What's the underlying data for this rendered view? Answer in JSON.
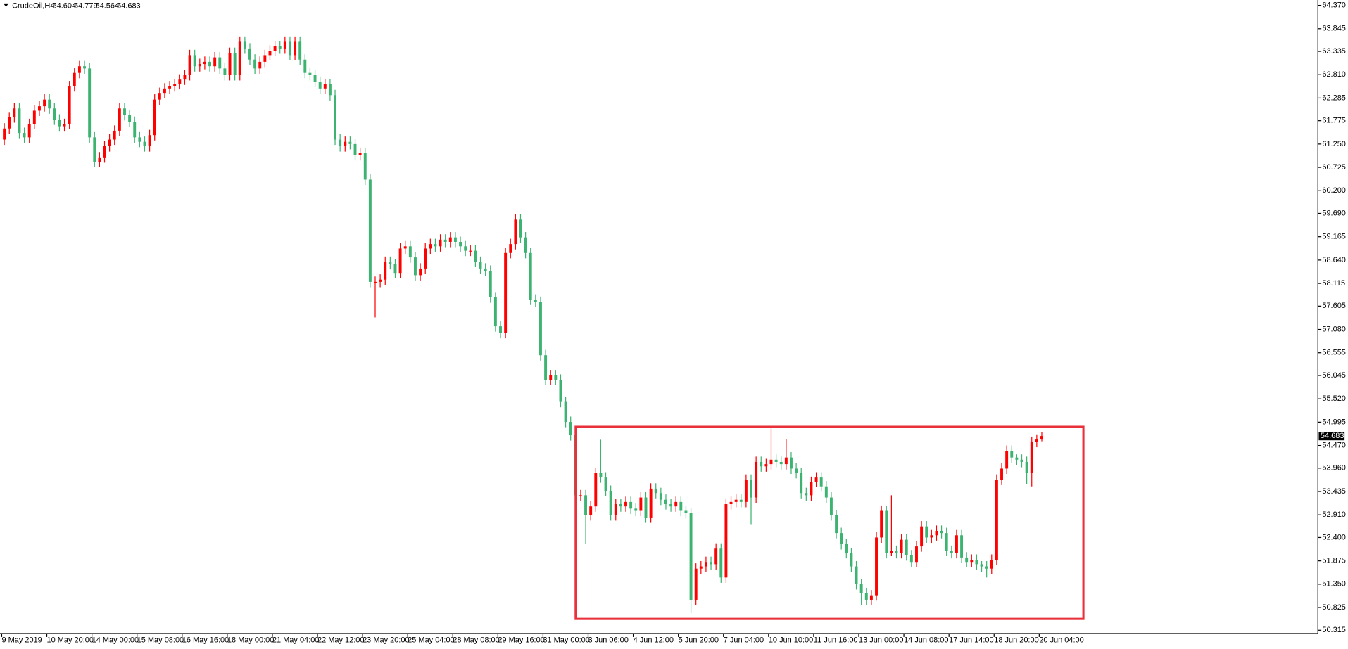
{
  "chart_data": {
    "type": "candlestick",
    "title": "CrudeOil,H4",
    "categories": [
      "9 May 2019",
      null,
      null,
      null,
      null,
      null,
      null,
      null,
      null,
      "10 May 20:00",
      null,
      null,
      null,
      null,
      null,
      null,
      null,
      null,
      "14 May 00:00",
      null,
      null,
      null,
      null,
      null,
      null,
      null,
      null,
      "15 May 08:00",
      null,
      null,
      null,
      null,
      null,
      null,
      null,
      null,
      "16 May 16:00",
      null,
      null,
      null,
      null,
      null,
      null,
      null,
      null,
      "18 May 00:00",
      null,
      null,
      null,
      null,
      null,
      null,
      null,
      null,
      "21 May 04:00",
      null,
      null,
      null,
      null,
      null,
      null,
      null,
      null,
      "22 May 12:00",
      null,
      null,
      null,
      null,
      null,
      null,
      null,
      null,
      "23 May 20:00",
      null,
      null,
      null,
      null,
      null,
      null,
      null,
      null,
      "25 May 04:00",
      null,
      null,
      null,
      null,
      null,
      null,
      null,
      null,
      "28 May 08:00",
      null,
      null,
      null,
      null,
      null,
      null,
      null,
      null,
      "29 May 16:00",
      null,
      null,
      null,
      null,
      null,
      null,
      null,
      null,
      "31 May 00:00",
      null,
      null,
      null,
      null,
      null,
      null,
      null,
      null,
      "3 Jun 06:00",
      null,
      null,
      null,
      null,
      null,
      null,
      null,
      null,
      "4 Jun 12:00",
      null,
      null,
      null,
      null,
      null,
      null,
      null,
      null,
      "5 Jun 20:00",
      null,
      null,
      null,
      null,
      null,
      null,
      null,
      null,
      "7 Jun 04:00",
      null,
      null,
      null,
      null,
      null,
      null,
      null,
      null,
      "10 Jun 10:00",
      null,
      null,
      null,
      null,
      null,
      null,
      null,
      null,
      "11 Jun 16:00",
      null,
      null,
      null,
      null,
      null,
      null,
      null,
      null,
      "13 Jun 00:00",
      null,
      null,
      null,
      null,
      null,
      null,
      null,
      null,
      "14 Jun 08:00",
      null,
      null,
      null,
      null,
      null,
      null,
      null,
      null,
      "17 Jun 14:00",
      null,
      null,
      null,
      null,
      null,
      null,
      null,
      null,
      "18 Jun 20:00",
      null,
      null,
      null,
      null,
      null,
      null,
      null,
      null,
      "20 Jun 04:00"
    ],
    "open": [
      61.35,
      61.6,
      61.85,
      62.05,
      61.5,
      61.4,
      61.7,
      62.0,
      62.1,
      62.25,
      62.05,
      61.8,
      61.65,
      61.7,
      62.55,
      62.85,
      63.0,
      62.95,
      61.4,
      60.85,
      60.95,
      61.2,
      61.35,
      61.55,
      62.05,
      61.9,
      61.75,
      61.4,
      61.3,
      61.2,
      61.45,
      62.25,
      62.4,
      62.5,
      62.55,
      62.6,
      62.7,
      62.8,
      63.25,
      63.0,
      63.05,
      63.1,
      63.0,
      63.2,
      62.95,
      62.8,
      63.3,
      62.8,
      63.55,
      63.4,
      63.15,
      62.95,
      63.1,
      63.25,
      63.35,
      63.45,
      63.4,
      63.55,
      63.25,
      63.55,
      63.15,
      62.85,
      62.8,
      62.65,
      62.5,
      62.6,
      62.35,
      61.35,
      61.2,
      61.3,
      61.25,
      61.0,
      61.05,
      60.45,
      58.15,
      58.15,
      58.2,
      58.6,
      58.55,
      58.35,
      58.9,
      58.95,
      58.7,
      58.3,
      58.45,
      58.9,
      59.0,
      58.95,
      59.1,
      59.05,
      59.15,
      59.05,
      58.95,
      58.85,
      58.85,
      58.6,
      58.45,
      58.4,
      57.8,
      57.15,
      57.0,
      58.8,
      59.0,
      59.55,
      59.15,
      58.8,
      57.75,
      57.7,
      56.5,
      55.95,
      56.05,
      55.95,
      55.45,
      55.0,
      54.7,
      53.35,
      53.35,
      52.9,
      53.1,
      53.85,
      53.75,
      53.45,
      52.9,
      53.15,
      53.1,
      53.2,
      53.05,
      53.0,
      53.3,
      52.85,
      53.5,
      53.4,
      53.25,
      53.15,
      53.1,
      53.2,
      53.0,
      52.95,
      51.0,
      51.7,
      51.75,
      51.85,
      51.8,
      52.15,
      51.5,
      53.15,
      53.2,
      53.25,
      53.2,
      53.7,
      53.3,
      54.1,
      54.0,
      54.05,
      54.15,
      54.1,
      54.05,
      54.2,
      53.95,
      53.85,
      53.4,
      53.35,
      53.65,
      53.75,
      53.55,
      53.3,
      52.9,
      52.5,
      52.25,
      52.05,
      51.75,
      51.35,
      51.15,
      51.0,
      51.1,
      52.4,
      53.0,
      52.05,
      52.1,
      52.05,
      52.35,
      52.0,
      51.85,
      52.2,
      52.65,
      52.4,
      52.45,
      52.55,
      52.5,
      52.1,
      52.05,
      52.45,
      51.95,
      51.85,
      51.9,
      51.8,
      51.75,
      51.7,
      51.9,
      53.7,
      53.95,
      54.35,
      54.2,
      54.15,
      54.1,
      53.85,
      54.55,
      54.604
    ],
    "high": [
      61.72,
      61.97,
      62.17,
      62.17,
      61.62,
      61.82,
      62.12,
      62.22,
      62.37,
      62.37,
      62.17,
      61.92,
      61.82,
      62.67,
      62.97,
      63.12,
      63.12,
      63.07,
      61.52,
      61.07,
      61.32,
      61.47,
      61.67,
      62.17,
      62.17,
      62.02,
      61.87,
      61.52,
      61.42,
      61.57,
      62.37,
      62.52,
      62.62,
      62.67,
      62.72,
      62.82,
      62.92,
      63.37,
      63.37,
      63.17,
      63.22,
      63.22,
      63.32,
      63.32,
      63.07,
      63.42,
      63.42,
      63.67,
      63.67,
      63.52,
      63.27,
      63.22,
      63.37,
      63.47,
      63.57,
      63.57,
      63.67,
      63.67,
      63.67,
      63.67,
      63.27,
      62.97,
      62.92,
      62.77,
      62.72,
      62.72,
      62.47,
      61.47,
      61.42,
      61.42,
      61.37,
      61.17,
      61.17,
      60.57,
      58.27,
      58.32,
      58.72,
      58.72,
      58.67,
      59.02,
      59.07,
      59.07,
      58.82,
      58.57,
      59.02,
      59.12,
      59.12,
      59.22,
      59.22,
      59.27,
      59.27,
      59.17,
      59.07,
      58.97,
      58.97,
      58.72,
      58.57,
      58.52,
      57.92,
      57.27,
      58.92,
      59.12,
      59.67,
      59.67,
      59.27,
      58.92,
      57.87,
      57.82,
      56.62,
      56.17,
      56.17,
      56.07,
      55.57,
      55.12,
      54.82,
      53.47,
      53.47,
      53.22,
      53.97,
      54.6,
      53.87,
      53.57,
      53.27,
      53.27,
      53.32,
      53.32,
      53.17,
      53.42,
      53.42,
      53.62,
      53.62,
      53.52,
      53.37,
      53.27,
      53.32,
      53.32,
      53.12,
      53.07,
      51.82,
      51.87,
      51.97,
      51.97,
      52.27,
      52.27,
      53.27,
      53.32,
      53.37,
      53.37,
      53.82,
      53.82,
      54.22,
      54.22,
      54.17,
      54.85,
      54.27,
      54.22,
      54.62,
      54.32,
      54.07,
      53.97,
      53.52,
      53.77,
      53.87,
      53.87,
      53.67,
      53.42,
      53.02,
      52.62,
      52.37,
      52.17,
      51.87,
      51.47,
      51.27,
      51.22,
      52.52,
      53.12,
      53.12,
      53.35,
      52.22,
      52.47,
      52.47,
      52.12,
      52.32,
      52.77,
      52.77,
      52.57,
      52.67,
      52.67,
      52.62,
      52.22,
      52.57,
      52.57,
      52.07,
      52.02,
      52.02,
      51.87,
      51.87,
      52.02,
      53.82,
      54.07,
      54.47,
      54.47,
      54.27,
      54.27,
      54.22,
      54.67,
      54.72,
      54.779
    ],
    "low": [
      61.23,
      61.48,
      61.73,
      61.38,
      61.28,
      61.28,
      61.58,
      61.88,
      61.98,
      61.93,
      61.68,
      61.53,
      61.53,
      61.58,
      62.43,
      62.73,
      62.83,
      61.28,
      60.73,
      60.73,
      60.83,
      61.08,
      61.23,
      61.43,
      61.78,
      61.63,
      61.28,
      61.18,
      61.08,
      61.08,
      61.33,
      62.13,
      62.28,
      62.38,
      62.43,
      62.48,
      62.58,
      62.68,
      62.88,
      62.88,
      62.93,
      62.88,
      62.88,
      62.83,
      62.68,
      62.68,
      62.68,
      62.68,
      63.28,
      63.03,
      62.83,
      62.83,
      62.98,
      63.13,
      63.23,
      63.28,
      63.28,
      63.13,
      63.13,
      63.03,
      62.73,
      62.68,
      62.53,
      62.38,
      62.38,
      62.23,
      61.23,
      61.08,
      61.08,
      61.13,
      60.88,
      60.88,
      60.33,
      58.03,
      57.35,
      58.03,
      58.08,
      58.43,
      58.23,
      58.23,
      58.78,
      58.58,
      58.18,
      58.18,
      58.33,
      58.78,
      58.83,
      58.83,
      58.93,
      58.93,
      58.93,
      58.83,
      58.73,
      58.73,
      58.48,
      58.33,
      58.28,
      57.68,
      57.03,
      56.88,
      56.88,
      58.68,
      58.88,
      59.03,
      58.68,
      57.63,
      57.58,
      56.38,
      55.83,
      55.83,
      55.83,
      55.33,
      54.88,
      54.58,
      53.23,
      53.23,
      52.25,
      52.78,
      52.98,
      53.63,
      53.33,
      52.78,
      52.78,
      52.98,
      52.98,
      52.93,
      52.88,
      52.88,
      52.73,
      52.73,
      53.28,
      53.13,
      53.03,
      52.98,
      52.98,
      52.88,
      52.83,
      50.7,
      50.88,
      51.58,
      51.63,
      51.68,
      51.68,
      51.38,
      51.38,
      53.03,
      53.08,
      53.08,
      53.08,
      52.7,
      53.18,
      53.88,
      53.88,
      53.93,
      53.98,
      53.93,
      53.93,
      53.83,
      53.73,
      53.28,
      53.23,
      53.23,
      53.53,
      53.43,
      53.18,
      52.78,
      52.38,
      52.13,
      51.93,
      51.63,
      51.23,
      50.88,
      50.88,
      50.88,
      50.98,
      52.28,
      51.93,
      51.98,
      51.93,
      51.93,
      51.88,
      51.73,
      51.73,
      52.08,
      52.28,
      52.28,
      52.33,
      52.38,
      51.98,
      51.93,
      51.93,
      51.83,
      51.73,
      51.73,
      51.68,
      51.63,
      51.5,
      51.58,
      51.78,
      53.58,
      53.83,
      54.08,
      54.03,
      53.98,
      53.6,
      53.55,
      54.43,
      54.564
    ],
    "close": [
      61.6,
      61.85,
      62.05,
      61.5,
      61.4,
      61.7,
      62.0,
      62.1,
      62.25,
      62.05,
      61.8,
      61.65,
      61.7,
      62.55,
      62.85,
      63.0,
      62.95,
      61.4,
      60.85,
      60.95,
      61.2,
      61.35,
      61.55,
      62.05,
      61.9,
      61.75,
      61.4,
      61.3,
      61.2,
      61.45,
      62.25,
      62.4,
      62.5,
      62.55,
      62.6,
      62.7,
      62.8,
      63.25,
      63.0,
      63.05,
      63.1,
      63.0,
      63.2,
      62.95,
      62.8,
      63.3,
      62.8,
      63.55,
      63.4,
      63.15,
      62.95,
      63.1,
      63.25,
      63.35,
      63.45,
      63.4,
      63.55,
      63.25,
      63.55,
      63.15,
      62.85,
      62.8,
      62.65,
      62.5,
      62.6,
      62.35,
      61.35,
      61.2,
      61.3,
      61.25,
      61.0,
      61.05,
      60.45,
      58.15,
      58.15,
      58.2,
      58.6,
      58.55,
      58.35,
      58.9,
      58.95,
      58.7,
      58.3,
      58.45,
      58.9,
      59.0,
      58.95,
      59.1,
      59.05,
      59.15,
      59.05,
      58.95,
      58.85,
      58.85,
      58.6,
      58.45,
      58.4,
      57.8,
      57.15,
      57.0,
      58.8,
      59.0,
      59.55,
      59.15,
      58.8,
      57.75,
      57.7,
      56.5,
      55.95,
      56.05,
      55.95,
      55.45,
      55.0,
      54.7,
      53.35,
      53.35,
      52.9,
      53.1,
      53.85,
      53.75,
      53.45,
      52.9,
      53.15,
      53.1,
      53.2,
      53.05,
      53.0,
      53.3,
      52.85,
      53.5,
      53.4,
      53.25,
      53.15,
      53.1,
      53.2,
      53.0,
      52.95,
      51.0,
      51.7,
      51.75,
      51.85,
      51.8,
      52.15,
      51.5,
      53.15,
      53.2,
      53.25,
      53.2,
      53.7,
      53.3,
      54.1,
      54.0,
      54.05,
      54.15,
      54.1,
      54.05,
      54.2,
      53.95,
      53.85,
      53.4,
      53.35,
      53.65,
      53.75,
      53.55,
      53.3,
      52.9,
      52.5,
      52.25,
      52.05,
      51.75,
      51.35,
      51.15,
      51.0,
      51.1,
      52.4,
      53.0,
      52.05,
      52.1,
      52.05,
      52.35,
      52.0,
      51.85,
      52.2,
      52.65,
      52.4,
      52.45,
      52.55,
      52.5,
      52.1,
      52.05,
      52.45,
      51.95,
      51.85,
      51.9,
      51.8,
      51.75,
      51.7,
      51.9,
      53.7,
      53.95,
      54.35,
      54.2,
      54.15,
      54.1,
      53.85,
      54.55,
      54.604,
      54.683
    ],
    "up_color": "#ff0000",
    "down_color": "#3cb371",
    "ylim": [
      50.24,
      64.49
    ],
    "yticks": [
      {
        "value": 64.37,
        "label": "64.370"
      },
      63.845,
      63.335,
      {
        "value": 62.81,
        "label": "62.810"
      },
      62.285,
      61.775,
      {
        "value": 61.25,
        "label": "61.250"
      },
      60.725,
      {
        "value": 60.2,
        "label": "60.200"
      },
      {
        "value": 59.69,
        "label": "59.690"
      },
      59.165,
      {
        "value": 58.64,
        "label": "58.640"
      },
      58.115,
      57.605,
      {
        "value": 57.08,
        "label": "57.080"
      },
      56.555,
      56.045,
      {
        "value": 55.52,
        "label": "55.520"
      },
      54.995,
      {
        "value": 54.47,
        "label": "54.470"
      },
      {
        "value": 53.96,
        "label": "53.960"
      },
      53.435,
      {
        "value": 52.91,
        "label": "52.910"
      },
      {
        "value": 52.4,
        "label": "52.400"
      },
      51.875,
      {
        "value": 51.35,
        "label": "51.350"
      },
      50.825,
      50.315
    ],
    "rectangle": {
      "x": [
        114,
        215.3
      ],
      "y": [
        50.57,
        54.89
      ],
      "color": "#e8313a"
    },
    "grid": false
  }
}
